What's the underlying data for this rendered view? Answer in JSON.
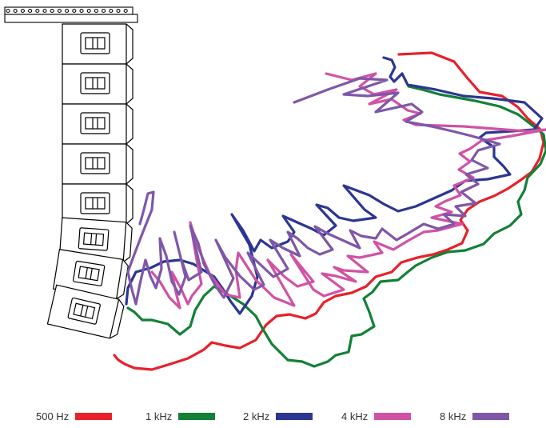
{
  "legend": {
    "items": [
      {
        "label": "500 Hz",
        "color": "#e8202a"
      },
      {
        "label": "1 kHz",
        "color": "#138036"
      },
      {
        "label": "2 kHz",
        "color": "#2b3692"
      },
      {
        "label": "4 kHz",
        "color": "#d052a4"
      },
      {
        "label": "8 kHz",
        "color": "#7e57a8"
      }
    ]
  },
  "speaker_array": {
    "cabinet_count": 8,
    "rigging_bar_holes": 17
  },
  "line_colors": {
    "c500": "#e8202a",
    "c1k": "#138036",
    "c2k": "#2b3692",
    "c4k": "#d052a4",
    "c8k": "#7e57a8",
    "outline": "#000000"
  }
}
